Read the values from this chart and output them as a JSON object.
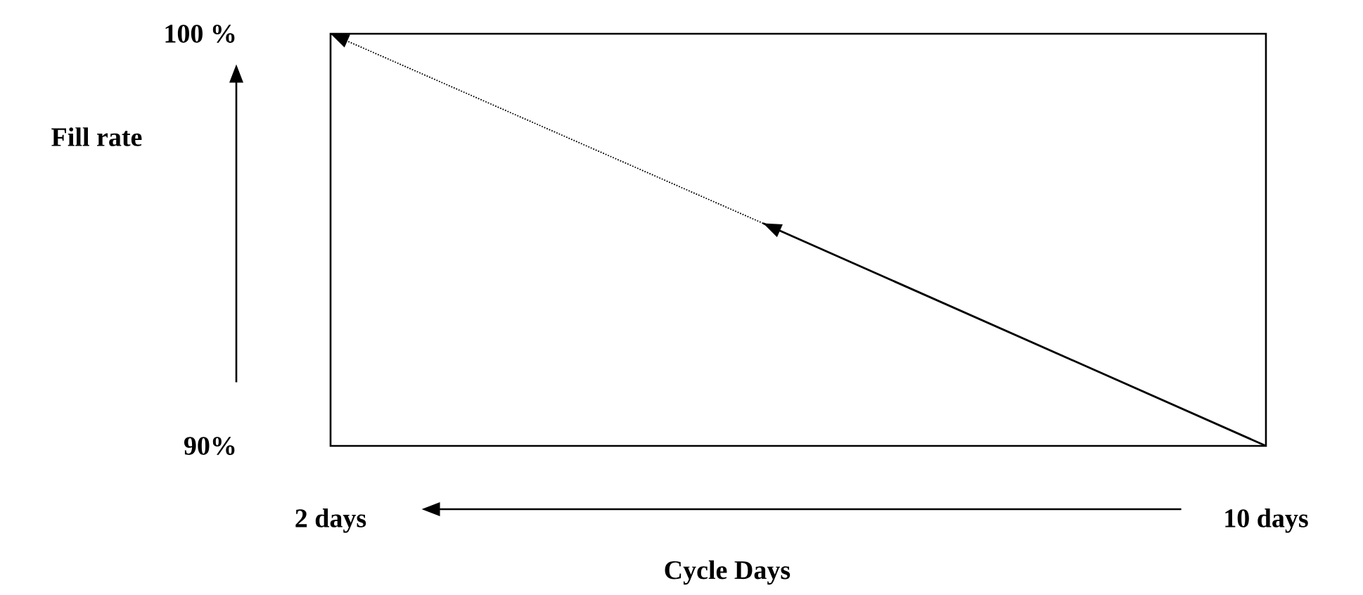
{
  "chart_data": {
    "type": "line",
    "xlabel": "Cycle Days",
    "ylabel": "Fill rate",
    "xlim": [
      2,
      10
    ],
    "ylim": [
      90,
      100
    ],
    "xticks": [
      {
        "value": 2,
        "label": "2 days"
      },
      {
        "value": 10,
        "label": "10 days"
      }
    ],
    "yticks": [
      {
        "value": 90,
        "label": "90%"
      },
      {
        "value": 100,
        "label": "100 %"
      }
    ],
    "marker": "none",
    "series": [
      {
        "x": [
          10,
          5.7
        ],
        "values": [
          90,
          95.4
        ],
        "color": "#000000",
        "line_style": "solid"
      },
      {
        "x": [
          5.7,
          2
        ],
        "values": [
          95.4,
          100
        ],
        "color": "#000000",
        "line_style": "dotted"
      }
    ]
  }
}
